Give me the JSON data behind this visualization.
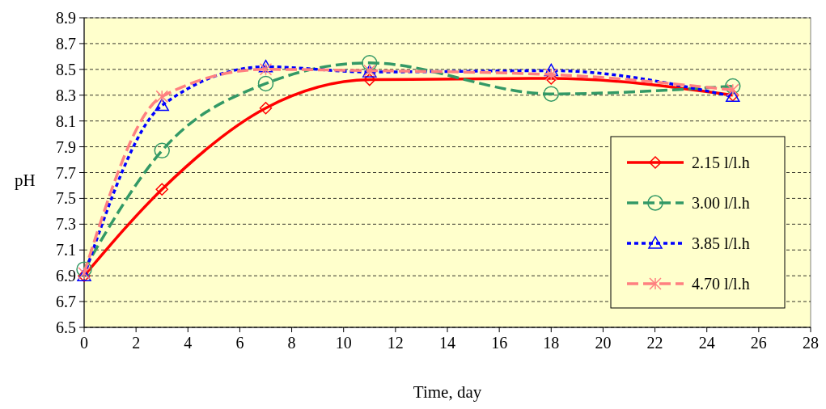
{
  "chart_data": {
    "type": "line",
    "xlabel": "Time, day",
    "ylabel": "pH",
    "x": [
      0,
      3,
      7,
      11,
      18,
      25
    ],
    "xlim": [
      0,
      28
    ],
    "xticks": [
      0,
      2,
      4,
      6,
      8,
      10,
      12,
      14,
      16,
      18,
      20,
      22,
      24,
      26,
      28
    ],
    "ylim": [
      6.5,
      8.9
    ],
    "yticks": [
      6.5,
      6.7,
      6.9,
      7.1,
      7.3,
      7.5,
      7.7,
      7.9,
      8.1,
      8.3,
      8.5,
      8.7,
      8.9
    ],
    "grid": "y",
    "legend": "right",
    "series": [
      {
        "name": "2.15 l/l.h",
        "color": "#ff0000",
        "marker": "diamond",
        "line_style": "solid",
        "values": [
          6.9,
          7.57,
          8.2,
          8.42,
          8.43,
          8.3
        ]
      },
      {
        "name": "3.00 l/l.h",
        "color": "#339966",
        "marker": "circle",
        "line_style": "dashed",
        "values": [
          6.95,
          7.87,
          8.39,
          8.55,
          8.31,
          8.37
        ]
      },
      {
        "name": "3.85 l/l.h",
        "color": "#0000ff",
        "marker": "triangle",
        "line_style": "dotted",
        "values": [
          6.9,
          8.22,
          8.52,
          8.48,
          8.49,
          8.29
        ]
      },
      {
        "name": "4.70 l/l.h",
        "color": "#ff8080",
        "marker": "cross",
        "line_style": "dashed",
        "values": [
          6.92,
          8.29,
          8.5,
          8.49,
          8.46,
          8.34
        ]
      }
    ]
  }
}
